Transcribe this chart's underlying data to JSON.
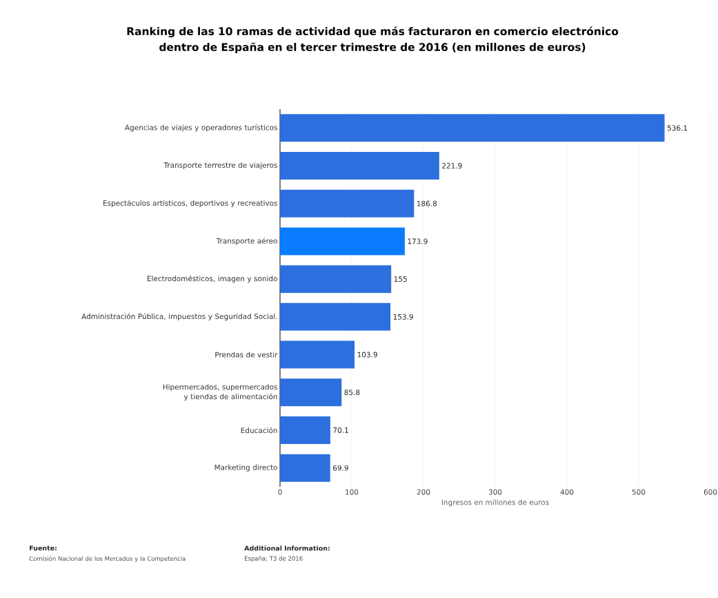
{
  "chart_data": {
    "type": "bar",
    "orientation": "horizontal",
    "title": "Ranking de las 10 ramas de actividad que más facturaron en comercio electrónico dentro de España en el tercer trimestre de 2016 (en millones de euros)",
    "xlabel": "Ingresos en millones de euros",
    "categories": [
      "Agencias de viajes y operadores turísticos",
      "Transporte terrestre de viajeros",
      "Espectáculos artísticos, deportivos y recreativos",
      "Transporte aéreo",
      "Electrodomésticos, imagen y sonido",
      "Administración Pública, impuestos y Seguridad Social.",
      "Prendas de vestir",
      "Hipermercados, supermercados y tiendas de alimentación",
      "Educación",
      "Marketing directo"
    ],
    "values": [
      536.1,
      221.9,
      186.8,
      173.9,
      155,
      153.9,
      103.9,
      85.8,
      70.1,
      69.9
    ],
    "colors": [
      "#2d6fde",
      "#2d6fde",
      "#2d6fde",
      "#0a7cff",
      "#2d6fde",
      "#2d6fde",
      "#2d6fde",
      "#2d6fde",
      "#2d6fde",
      "#2d6fde"
    ],
    "xlim": [
      0,
      600
    ],
    "xticks": [
      0,
      100,
      200,
      300,
      400,
      500,
      600
    ],
    "grid": "x",
    "data_labels": true,
    "annotations": [
      "Fuente:",
      "Comisión Nacional de los Mercados y la Competencia",
      "Additional Information:",
      "España; T3 de 2016"
    ]
  }
}
